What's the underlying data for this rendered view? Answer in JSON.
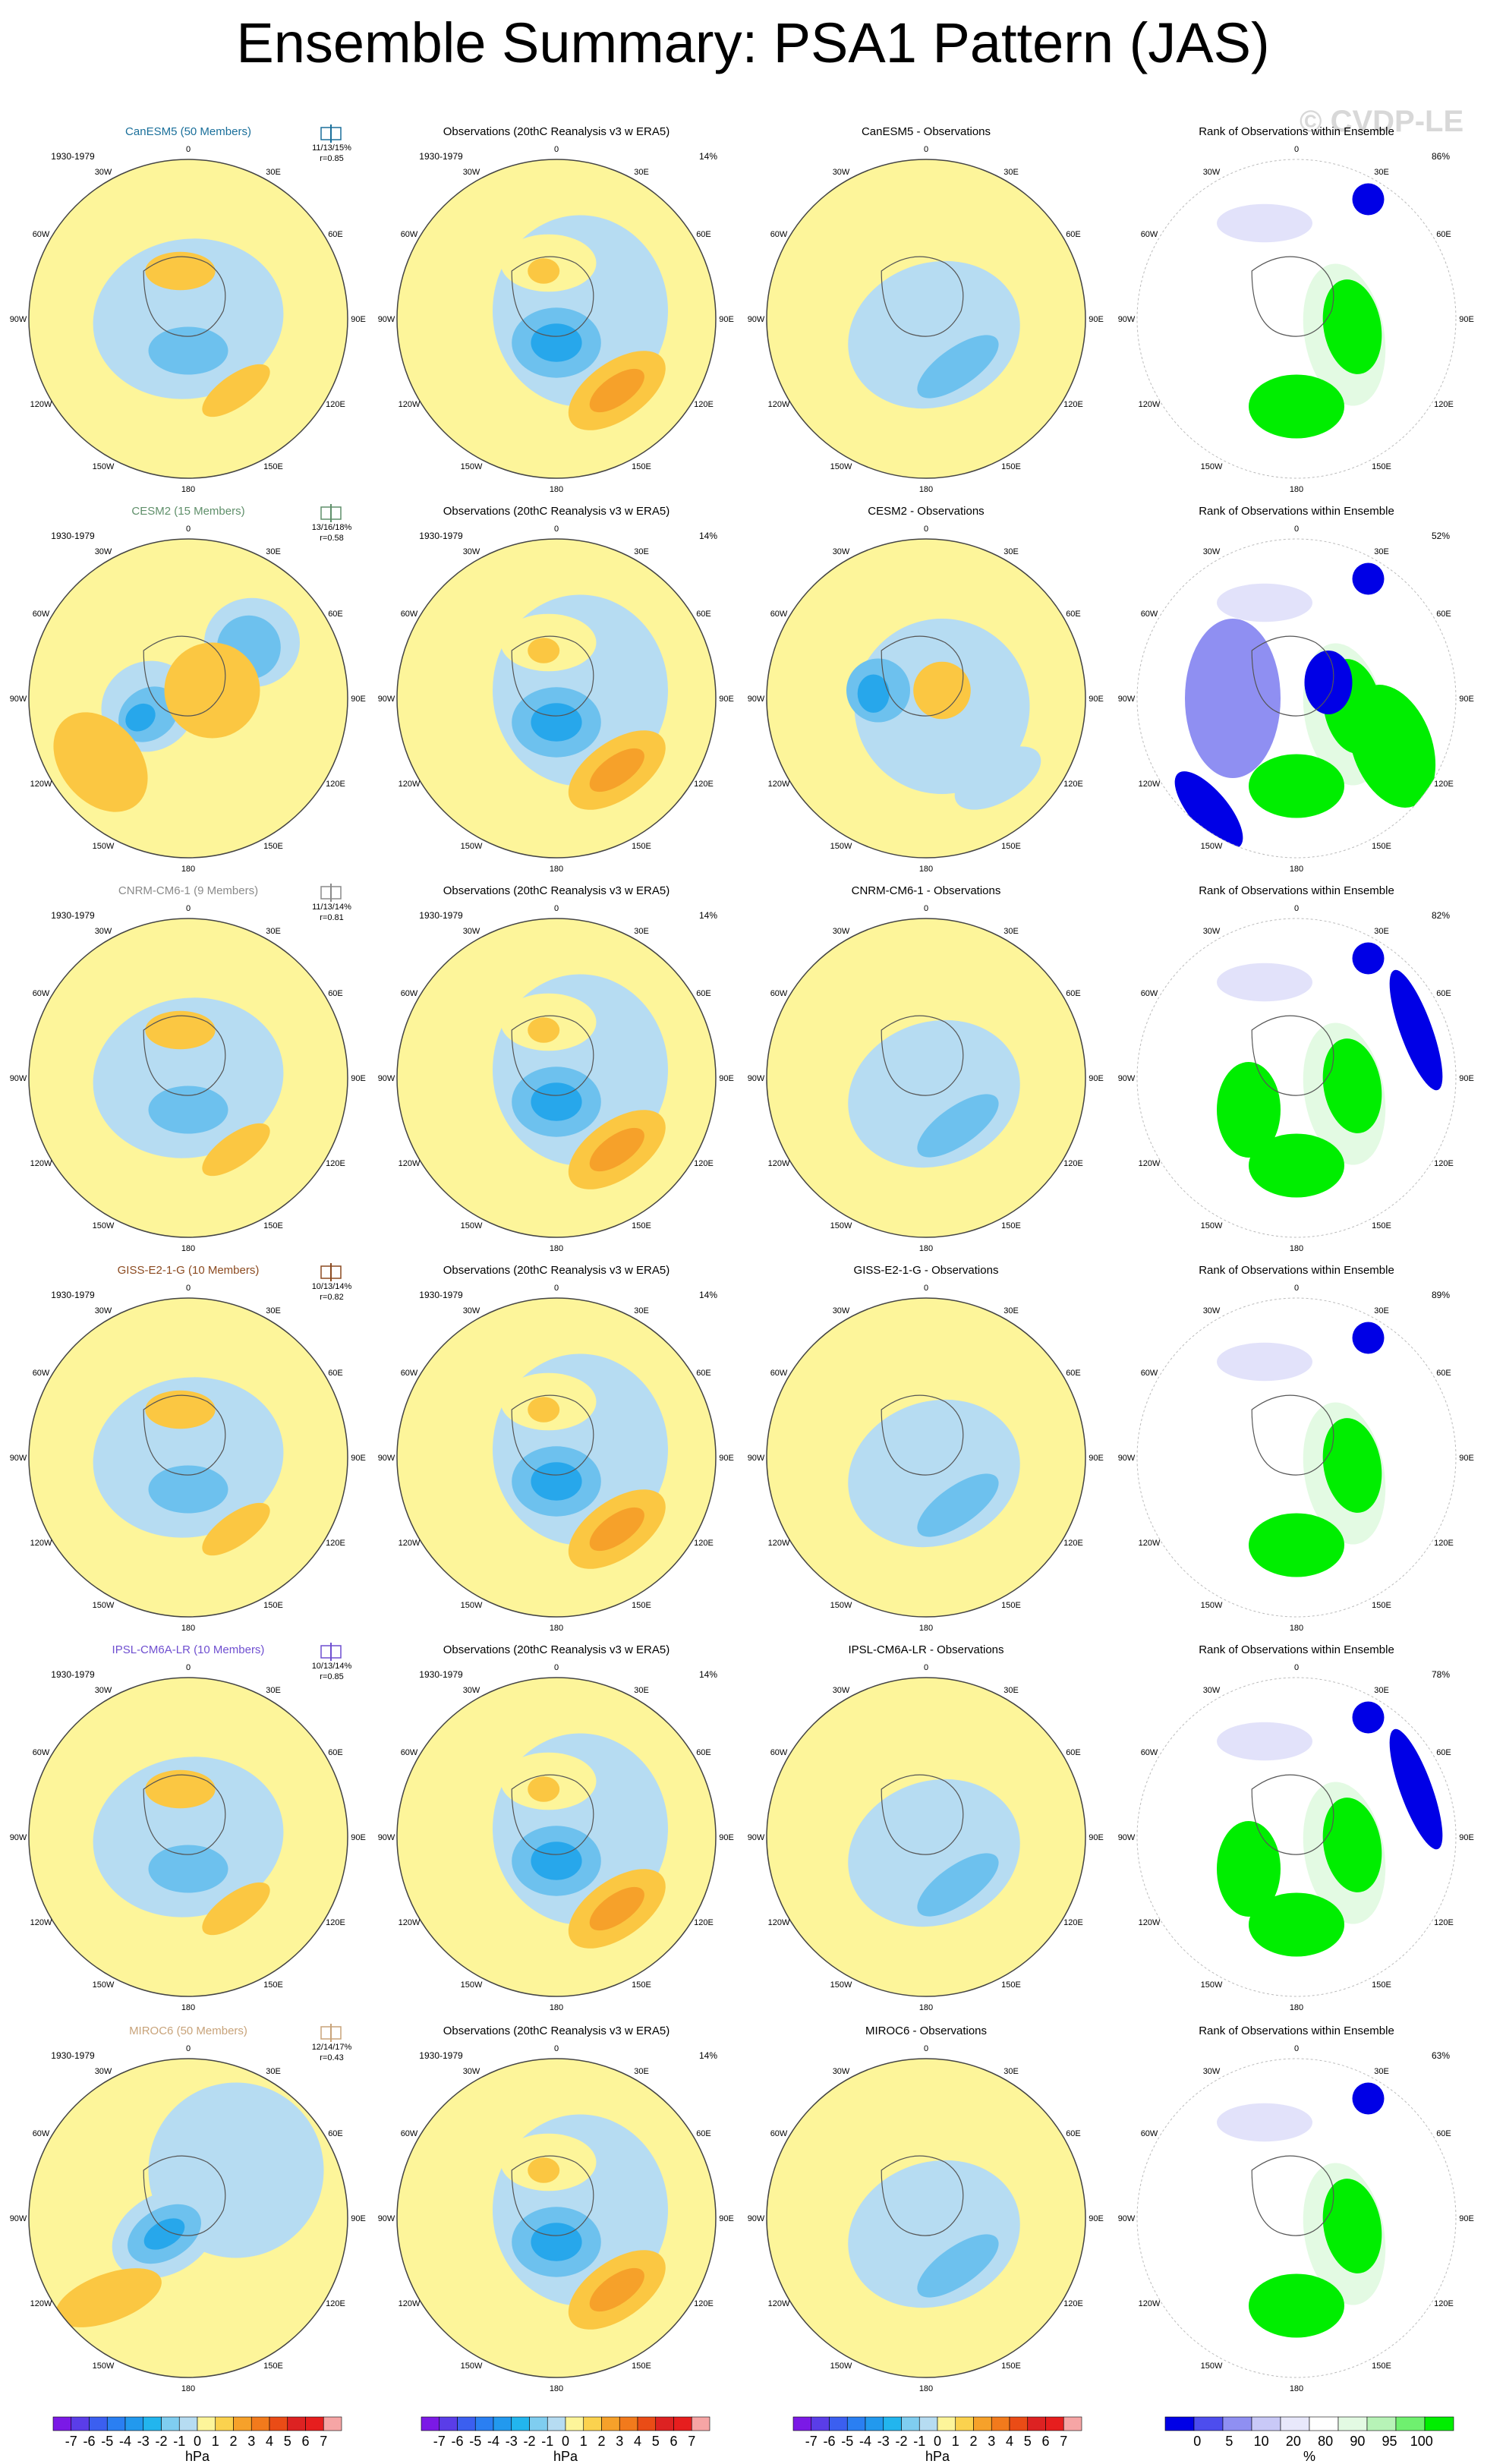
{
  "title": "Ensemble Summary: PSA1 Pattern (JAS)",
  "watermark": "© CVDP-LE",
  "colors": {
    "pos1": "#fdf59a",
    "pos2": "#fbc742",
    "pos3": "#f6a12a",
    "neg1": "#b6dcf2",
    "neg2": "#6dc1ee",
    "neg3": "#27a7eb",
    "rank_low": "#0000e6",
    "rank_mid": "#8f8ff2",
    "rank_light": "#e2e2fa",
    "rank_high": "#00ee00",
    "rank_hmid": "#8ef08e",
    "rank_hlight": "#e3fae3",
    "coast": "#555555"
  },
  "meridian_labels": [
    "0",
    "30E",
    "60E",
    "90E",
    "120E",
    "150E",
    "180",
    "150W",
    "120W",
    "90W",
    "60W",
    "30W"
  ],
  "period": "1930-1979",
  "obs_title": "Observations (20thC Reanalysis v3 w ERA5)",
  "obs_pct": "14%",
  "rank_title": "Rank of Observations within Ensemble",
  "rows": [
    {
      "model": "CanESM5",
      "members": "CanESM5 (50 Members)",
      "color": "#1a6f9a",
      "stats": "11/13/15%",
      "r": "r=0.85",
      "diff_title": "CanESM5 - Observations",
      "rank_pct": "86%"
    },
    {
      "model": "CESM2",
      "members": "CESM2 (15 Members)",
      "color": "#5f8f6a",
      "stats": "13/16/18%",
      "r": "r=0.58",
      "diff_title": "CESM2 - Observations",
      "rank_pct": "52%"
    },
    {
      "model": "CNRM-CM6-1",
      "members": "CNRM-CM6-1 (9 Members)",
      "color": "#8a8a8a",
      "stats": "11/13/14%",
      "r": "r=0.81",
      "diff_title": "CNRM-CM6-1 - Observations",
      "rank_pct": "82%"
    },
    {
      "model": "GISS-E2-1-G",
      "members": "GISS-E2-1-G (10 Members)",
      "color": "#8b4a20",
      "stats": "10/13/14%",
      "r": "r=0.82",
      "diff_title": "GISS-E2-1-G - Observations",
      "rank_pct": "89%"
    },
    {
      "model": "IPSL-CM6A-LR",
      "members": "IPSL-CM6A-LR (10 Members)",
      "color": "#6f4fd0",
      "stats": "10/13/14%",
      "r": "r=0.85",
      "diff_title": "IPSL-CM6A-LR - Observations",
      "rank_pct": "78%"
    },
    {
      "model": "MIROC6",
      "members": "MIROC6 (50 Members)",
      "color": "#c8a37a",
      "stats": "12/14/17%",
      "r": "r=0.43",
      "diff_title": "MIROC6 - Observations",
      "rank_pct": "63%"
    }
  ],
  "hpa_bar": {
    "ticks": [
      "-7",
      "-6",
      "-5",
      "-4",
      "-3",
      "-2",
      "-1",
      "0",
      "1",
      "2",
      "3",
      "4",
      "5",
      "6",
      "7"
    ],
    "unit": "hPa",
    "colors": [
      "#7b19e6",
      "#5a3de8",
      "#3b5ff0",
      "#2a7ff2",
      "#2299ee",
      "#22b5ee",
      "#7fcdf0",
      "#b6dcf2",
      "#fdf59a",
      "#fbd24e",
      "#f6a12a",
      "#f27a1c",
      "#ea4c16",
      "#dd2222",
      "#e61e1e",
      "#f6a5a5"
    ]
  },
  "rank_bar": {
    "ticks": [
      "0",
      "5",
      "10",
      "20",
      "80",
      "90",
      "95",
      "100"
    ],
    "unit": "%",
    "colors": [
      "#0000e6",
      "#4d4dee",
      "#8f8ff2",
      "#c9c9f7",
      "#e8e8fb",
      "#ffffff",
      "#e3fae3",
      "#b7f3b7",
      "#6ff06f",
      "#00ee00"
    ]
  },
  "chart_data": {
    "type": "polar-contour-map-grid",
    "layout": "6 rows x 4 columns",
    "columns": [
      "model ensemble pattern",
      "Observations (20thC Reanalysis v3 w ERA5)",
      "model - observations",
      "Rank of Observations within Ensemble"
    ],
    "rows": [
      "CanESM5",
      "CESM2",
      "CNRM-CM6-1",
      "GISS-E2-1-G",
      "IPSL-CM6A-LR",
      "MIROC6"
    ],
    "contour_levels_hPa": [
      -7,
      -6,
      -5,
      -4,
      -3,
      -2,
      -1,
      0,
      1,
      2,
      3,
      4,
      5,
      6,
      7
    ],
    "rank_levels_pct": [
      0,
      5,
      10,
      20,
      80,
      90,
      95,
      100
    ]
  }
}
